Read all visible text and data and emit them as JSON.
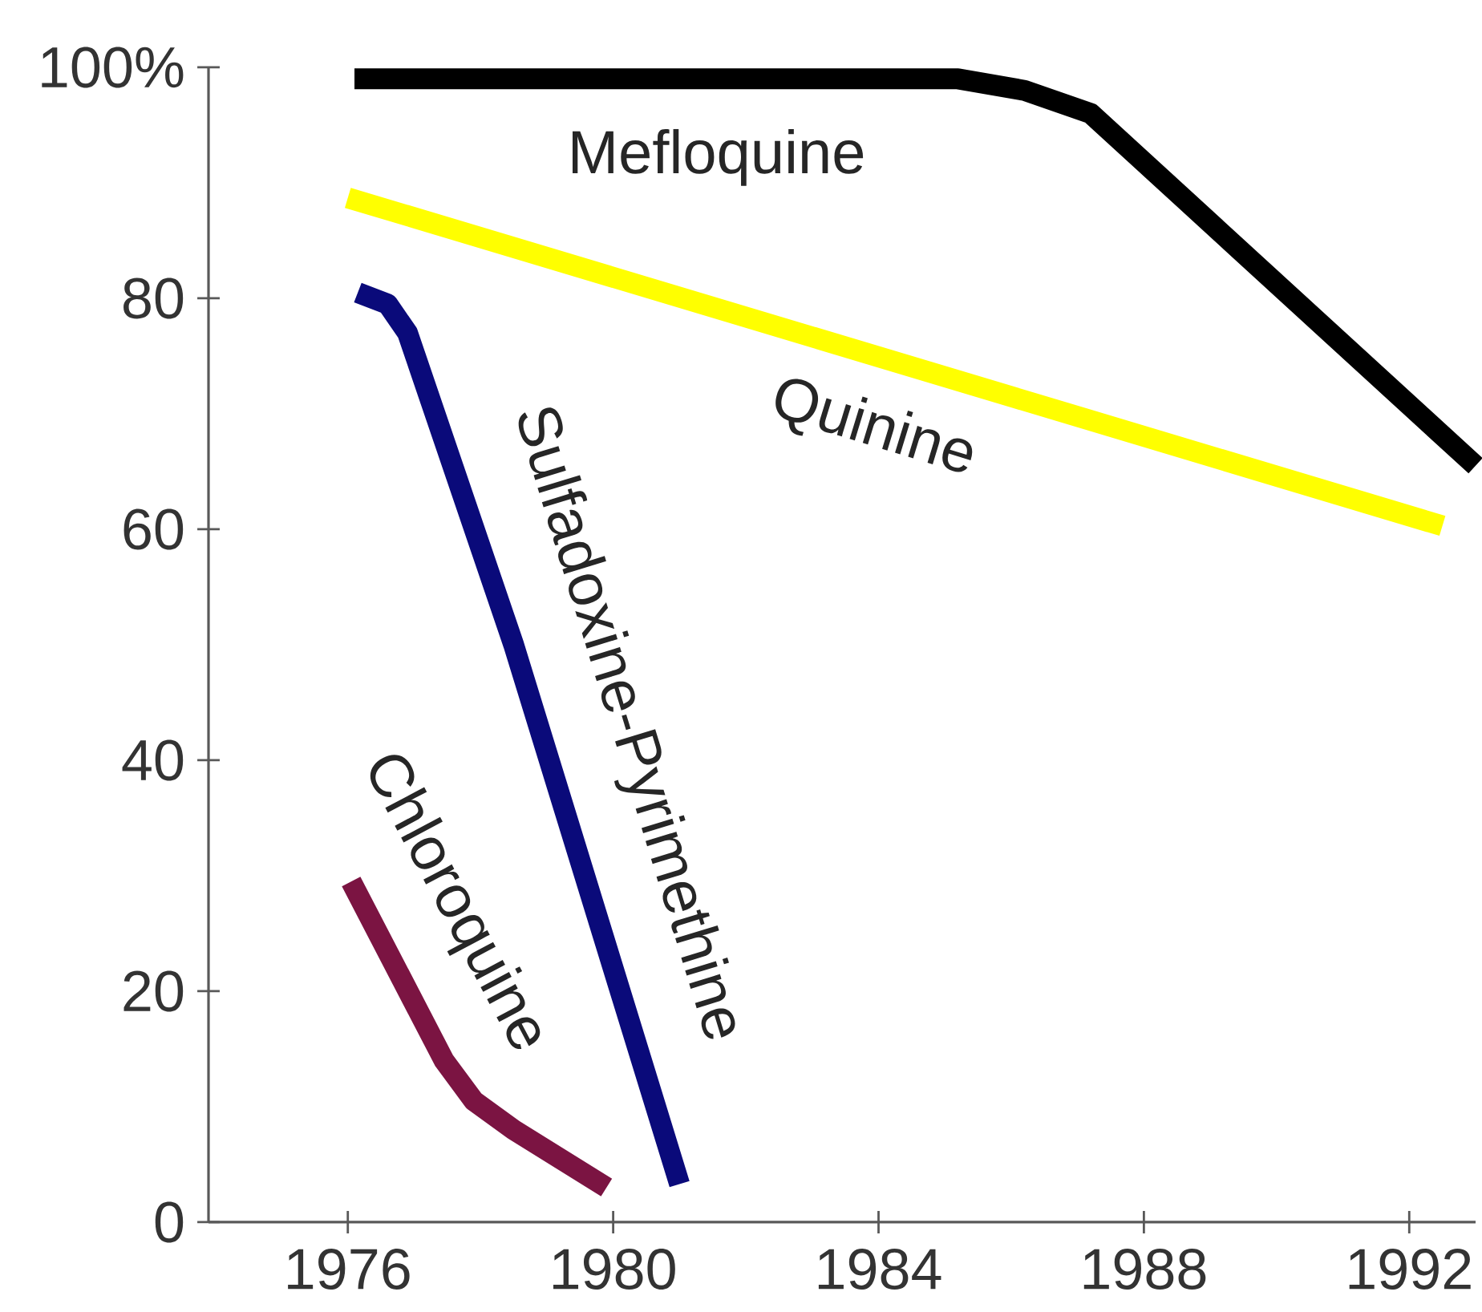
{
  "chart_data": {
    "type": "line",
    "xlim": [
      1973.9,
      1993
    ],
    "xticks": [
      1976,
      1980,
      1984,
      1988,
      1992
    ],
    "ylim": [
      0,
      100
    ],
    "yticks": [
      0,
      20,
      40,
      60,
      80,
      {
        "value": 100,
        "label": "100%"
      }
    ],
    "marker": "none",
    "line_style": "solid",
    "series": [
      {
        "name": "Mefloquine",
        "color": "#000000",
        "x": [
          1976.1,
          1985.2,
          1986.2,
          1987.2,
          1993
        ],
        "values": [
          99,
          99,
          98,
          96,
          65.5
        ]
      },
      {
        "name": "Quinine",
        "color": "#ffff00",
        "x": [
          1976,
          1992.5
        ],
        "values": [
          88.7,
          60.3
        ]
      },
      {
        "name": "Sulfadoxine-Pyrimethine",
        "color": "#0a0a7a",
        "x": [
          1976.15,
          1976.6,
          1976.9,
          1978.5,
          1981
        ],
        "values": [
          80.5,
          79.5,
          77,
          50,
          3.3
        ]
      },
      {
        "name": "Chloroquine",
        "color": "#7b1442",
        "x": [
          1976.05,
          1977.45,
          1977.9,
          1978.5,
          1979.9
        ],
        "values": [
          29.5,
          14,
          10.5,
          8,
          3
        ]
      }
    ]
  }
}
